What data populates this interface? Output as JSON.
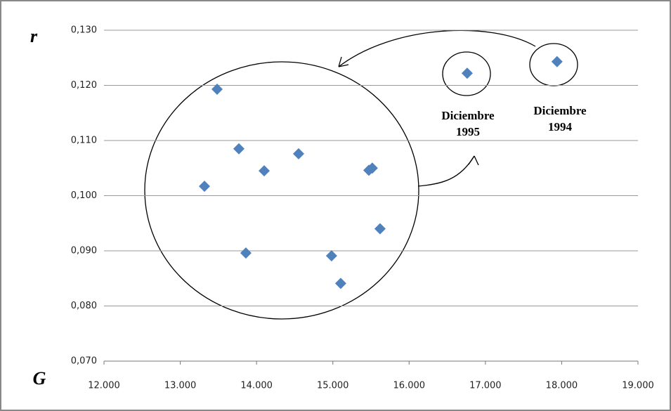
{
  "chart_data": {
    "type": "scatter",
    "x_label": "G",
    "y_label": "r",
    "x": [
      13317,
      13483,
      13768,
      13860,
      14100,
      14551,
      14983,
      15103,
      15472,
      15517,
      15619,
      16761,
      17939
    ],
    "values": [
      0.1017,
      0.1193,
      0.1085,
      0.0896,
      0.1045,
      0.1076,
      0.0891,
      0.0841,
      0.1046,
      0.105,
      0.094,
      0.1222,
      0.1243
    ],
    "color": "#4f81bd",
    "xlim": [
      12000,
      19000
    ],
    "xticks": [
      {
        "value": 12000,
        "label": "12.000"
      },
      {
        "value": 13000,
        "label": "13.000"
      },
      {
        "value": 14000,
        "label": "14.000"
      },
      {
        "value": 15000,
        "label": "15.000"
      },
      {
        "value": 16000,
        "label": "16.000"
      },
      {
        "value": 17000,
        "label": "17.000"
      },
      {
        "value": 18000,
        "label": "18.000"
      },
      {
        "value": 19000,
        "label": "19.000"
      }
    ],
    "ylim": [
      0.07,
      0.13
    ],
    "yticks": [
      {
        "value": 0.07,
        "label": "0,070"
      },
      {
        "value": 0.08,
        "label": "0,080"
      },
      {
        "value": 0.09,
        "label": "0,090"
      },
      {
        "value": 0.1,
        "label": "0,100"
      },
      {
        "value": 0.11,
        "label": "0,110"
      },
      {
        "value": 0.12,
        "label": "0,120"
      },
      {
        "value": 0.13,
        "label": "0,130"
      }
    ],
    "grid": true,
    "annotations": [
      [
        "Diciembre",
        "1995"
      ],
      [
        "Diciembre",
        "1994"
      ]
    ]
  }
}
